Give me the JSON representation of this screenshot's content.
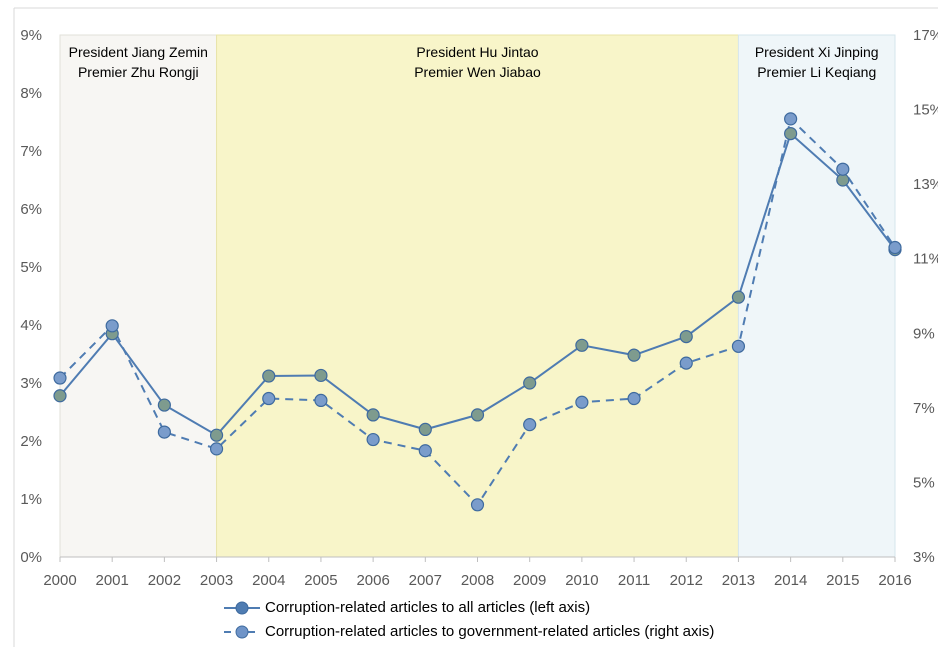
{
  "chart_data": {
    "type": "line",
    "x": [
      "2000",
      "2001",
      "2002",
      "2003",
      "2004",
      "2005",
      "2006",
      "2007",
      "2008",
      "2009",
      "2010",
      "2011",
      "2012",
      "2013",
      "2014",
      "2015",
      "2016"
    ],
    "left_axis": {
      "min": 0,
      "max": 9,
      "ticks": [
        "0%",
        "1%",
        "2%",
        "3%",
        "4%",
        "5%",
        "6%",
        "7%",
        "8%",
        "9%"
      ]
    },
    "right_axis": {
      "min": 3,
      "max": 17,
      "ticks": [
        "3%",
        "5%",
        "7%",
        "9%",
        "11%",
        "13%",
        "15%",
        "17%"
      ]
    },
    "series": [
      {
        "name": "Corruption-related articles to all articles (left axis)",
        "axis": "left",
        "style": "solid",
        "values": [
          2.78,
          3.85,
          2.62,
          2.1,
          3.12,
          3.13,
          2.45,
          2.2,
          2.45,
          3.0,
          3.65,
          3.48,
          3.8,
          4.48,
          7.3,
          6.5,
          5.3
        ]
      },
      {
        "name": "Corruption-related articles to government-related articles (right axis)",
        "axis": "right",
        "style": "dashed",
        "values": [
          7.8,
          9.2,
          6.35,
          5.9,
          7.25,
          7.2,
          6.15,
          5.85,
          4.4,
          6.55,
          7.15,
          7.25,
          8.2,
          8.65,
          14.75,
          13.4,
          11.3
        ]
      }
    ],
    "grid": false,
    "legend_placement": "bottom",
    "colors": {
      "series1": "#4F7CB2",
      "series2": "#4F7CB2",
      "marker_fill": "#7E9B8E",
      "era1": "#F7F6F3",
      "era2": "#F8F5C9",
      "era3": "#EFF6F9"
    },
    "eras": [
      {
        "start": "2000",
        "end": "2003",
        "lines": [
          "President Jiang Zemin",
          "Premier Zhu Rongji"
        ]
      },
      {
        "start": "2003",
        "end": "2013",
        "lines": [
          "President Hu Jintao",
          "Premier Wen Jiabao"
        ]
      },
      {
        "start": "2013",
        "end": "2016",
        "lines": [
          "President Xi Jinping",
          "Premier Li Keqiang"
        ]
      }
    ]
  },
  "legend": {
    "series1": "Corruption-related articles to all articles (left axis)",
    "series2": "Corruption-related articles to government-related articles (right axis)"
  }
}
